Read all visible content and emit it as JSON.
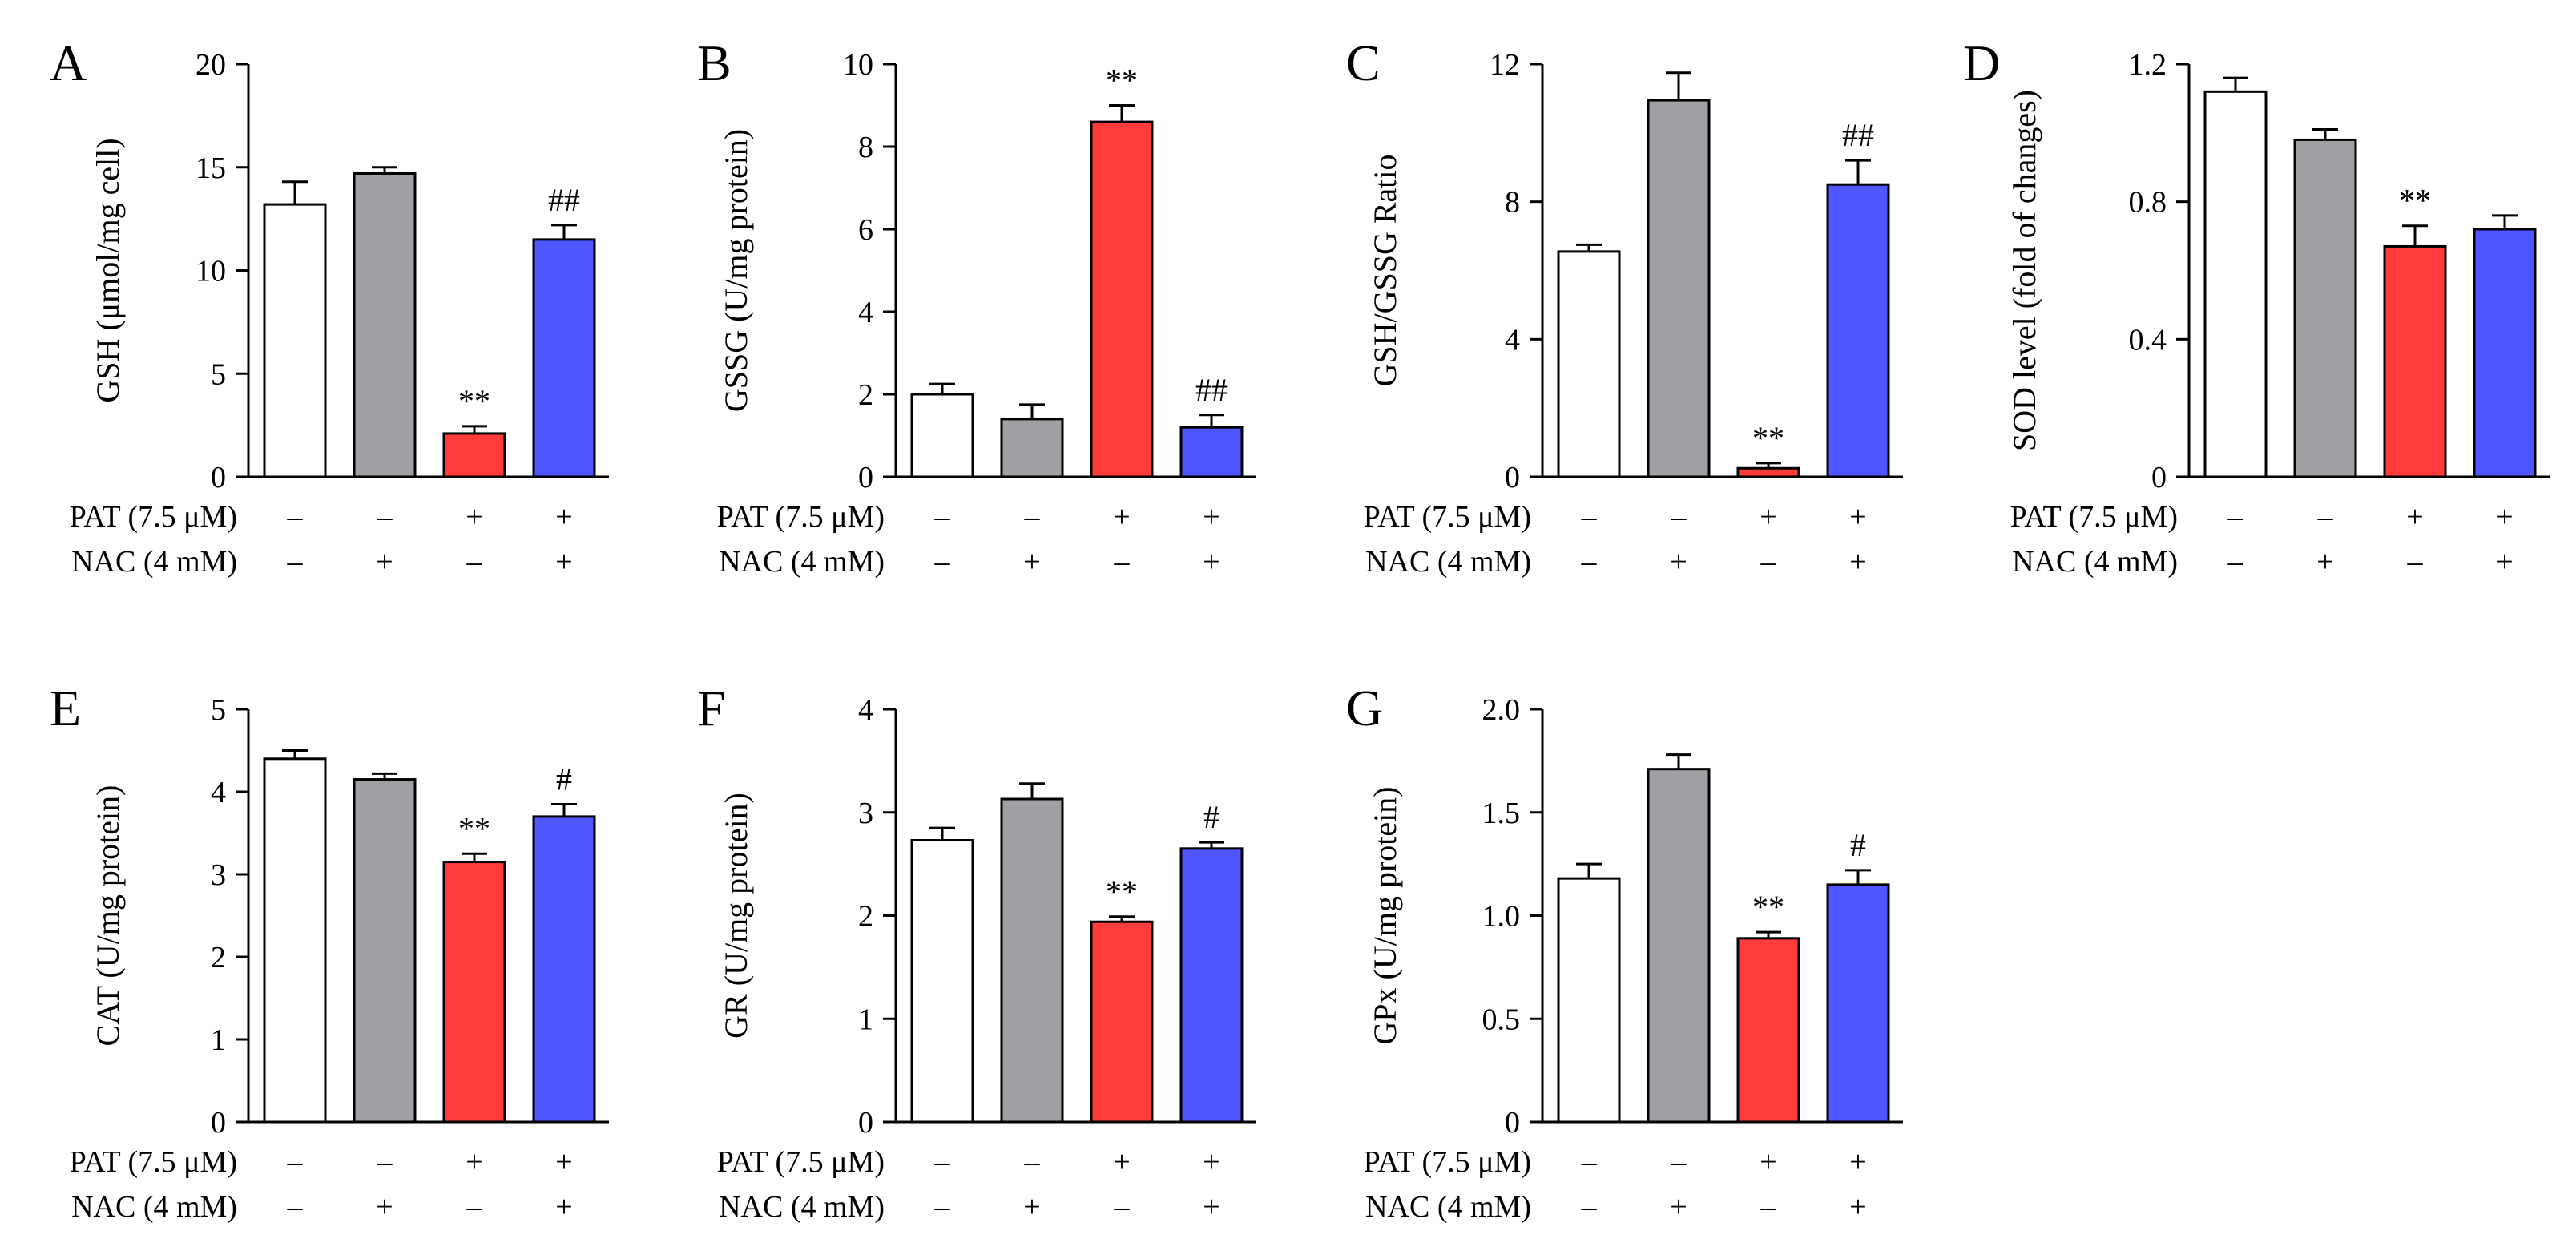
{
  "figure_labels": {
    "pat": "PAT (7.5 μM)",
    "nac": "NAC (4 mM)",
    "minus": "–",
    "plus": "+"
  },
  "groups": [
    {
      "pat": "–",
      "nac": "–"
    },
    {
      "pat": "–",
      "nac": "+"
    },
    {
      "pat": "+",
      "nac": "–"
    },
    {
      "pat": "+",
      "nac": "+"
    }
  ],
  "colors": {
    "control": "#ffffff",
    "nac": "#a0a0a4",
    "pat": "#ff3b3b",
    "pat_nac": "#4f55ff",
    "stroke": "#000000"
  },
  "chart_data": [
    {
      "panel": "A",
      "type": "bar",
      "ylabel": "GSH (μmol/mg cell)",
      "ylim": [
        0,
        20
      ],
      "yticks": [
        0,
        5,
        10,
        15,
        20
      ],
      "ytick_labels": [
        "0",
        "5",
        "10",
        "15",
        "20"
      ],
      "values": [
        13.2,
        14.7,
        2.1,
        11.5
      ],
      "errors": [
        1.1,
        0.3,
        0.35,
        0.7
      ],
      "annotations": [
        "",
        "",
        "**",
        "##"
      ]
    },
    {
      "panel": "B",
      "type": "bar",
      "ylabel": "GSSG (U/mg protein)",
      "ylim": [
        0,
        10
      ],
      "yticks": [
        0,
        2,
        4,
        6,
        8,
        10
      ],
      "ytick_labels": [
        "0",
        "2",
        "4",
        "6",
        "8",
        "10"
      ],
      "values": [
        2.0,
        1.4,
        8.6,
        1.2
      ],
      "errors": [
        0.25,
        0.35,
        0.4,
        0.3
      ],
      "annotations": [
        "",
        "",
        "**",
        "##"
      ]
    },
    {
      "panel": "C",
      "type": "bar",
      "ylabel": "GSH/GSSG Ratio",
      "ylim": [
        0,
        12
      ],
      "yticks": [
        0,
        4,
        8,
        12
      ],
      "ytick_labels": [
        "0",
        "4",
        "8",
        "12"
      ],
      "values": [
        6.55,
        10.95,
        0.25,
        8.5
      ],
      "errors": [
        0.2,
        0.8,
        0.15,
        0.7
      ],
      "annotations": [
        "",
        "",
        "**",
        "##"
      ]
    },
    {
      "panel": "D",
      "type": "bar",
      "ylabel": "SOD level (fold of changes)",
      "ylim": [
        0,
        1.2
      ],
      "yticks": [
        0,
        0.4,
        0.8,
        1.2
      ],
      "ytick_labels": [
        "0",
        "0.4",
        "0.8",
        "1.2"
      ],
      "values": [
        1.12,
        0.98,
        0.67,
        0.72
      ],
      "errors": [
        0.04,
        0.03,
        0.06,
        0.04
      ],
      "annotations": [
        "",
        "",
        "**",
        ""
      ]
    },
    {
      "panel": "E",
      "type": "bar",
      "ylabel": "CAT (U/mg protein)",
      "ylim": [
        0,
        5
      ],
      "yticks": [
        0,
        1,
        2,
        3,
        4,
        5
      ],
      "ytick_labels": [
        "0",
        "1",
        "2",
        "3",
        "4",
        "5"
      ],
      "values": [
        4.4,
        4.15,
        3.15,
        3.7
      ],
      "errors": [
        0.1,
        0.07,
        0.1,
        0.15
      ],
      "annotations": [
        "",
        "",
        "**",
        "#"
      ]
    },
    {
      "panel": "F",
      "type": "bar",
      "ylabel": "GR (U/mg protein)",
      "ylim": [
        0,
        4
      ],
      "yticks": [
        0,
        1,
        2,
        3,
        4
      ],
      "ytick_labels": [
        "0",
        "1",
        "2",
        "3",
        "4"
      ],
      "values": [
        2.73,
        3.13,
        1.94,
        2.65
      ],
      "errors": [
        0.12,
        0.15,
        0.05,
        0.06
      ],
      "annotations": [
        "",
        "",
        "**",
        "#"
      ]
    },
    {
      "panel": "G",
      "type": "bar",
      "ylabel": "GPx (U/mg protein)",
      "ylim": [
        0,
        2.0
      ],
      "yticks": [
        0,
        0.5,
        1.0,
        1.5,
        2.0
      ],
      "ytick_labels": [
        "0",
        "0.5",
        "1.0",
        "1.5",
        "2.0"
      ],
      "values": [
        1.18,
        1.71,
        0.89,
        1.15
      ],
      "errors": [
        0.07,
        0.07,
        0.03,
        0.07
      ],
      "annotations": [
        "",
        "",
        "**",
        "#"
      ]
    }
  ]
}
